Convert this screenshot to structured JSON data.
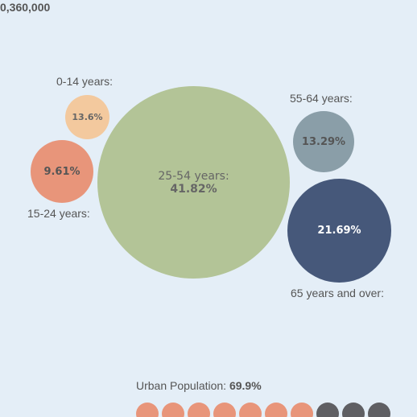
{
  "header": {
    "top_figure": "0,360,000"
  },
  "bubbles": [
    {
      "label": "0-14 years:",
      "value": "13.6%"
    },
    {
      "label": "15-24 years:",
      "value": "9.61%"
    },
    {
      "label": "25-54 years:",
      "value": "41.82%"
    },
    {
      "label": "55-64 years:",
      "value": "13.29%"
    },
    {
      "label": "65 years and over:",
      "value": "21.69%"
    }
  ],
  "urban": {
    "label": "Urban Population:",
    "value": "69.9%",
    "fraction": 0.699,
    "dot_colors": {
      "urban": "#e8957a",
      "rural": "#5f5f63"
    },
    "dot_pattern": [
      "urban",
      "urban",
      "urban",
      "urban",
      "urban",
      "urban",
      "urban",
      "rural",
      "rural",
      "rural"
    ]
  },
  "colors": {
    "background": "#e4eef7",
    "age_0_14": "#f3c99e",
    "age_15_24": "#e8957a",
    "age_25_54": "#b3c497",
    "age_55_64": "#8a9ea8",
    "age_65_over": "#46587a"
  }
}
